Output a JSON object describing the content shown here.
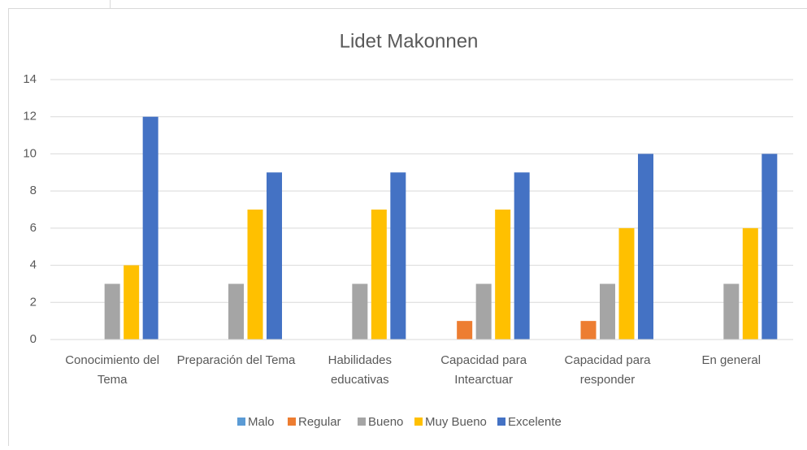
{
  "chart_data": {
    "type": "bar",
    "title": "Lidet Makonnen",
    "categories": [
      "Conocimiento del Tema",
      "Preparación del Tema",
      "Habilidades educativas",
      "Capacidad para Intearctuar",
      "Capacidad para responder",
      "En general"
    ],
    "series": [
      {
        "name": "Malo",
        "color": "#5b9bd5",
        "values": [
          0,
          0,
          0,
          0,
          0,
          0
        ]
      },
      {
        "name": "Regular",
        "color": "#ed7d31",
        "values": [
          0,
          0,
          0,
          1,
          1,
          0
        ]
      },
      {
        "name": "Bueno",
        "color": "#a5a5a5",
        "values": [
          3,
          3,
          3,
          3,
          3,
          3
        ]
      },
      {
        "name": "Muy Bueno",
        "color": "#ffc000",
        "values": [
          4,
          7,
          7,
          7,
          6,
          6
        ]
      },
      {
        "name": "Excelente",
        "color": "#4472c4",
        "values": [
          12,
          9,
          9,
          9,
          10,
          10
        ]
      }
    ],
    "ylim": [
      0,
      14
    ],
    "yticks": [
      0,
      2,
      4,
      6,
      8,
      10,
      12,
      14
    ],
    "grid": true,
    "legend": "bottom"
  }
}
